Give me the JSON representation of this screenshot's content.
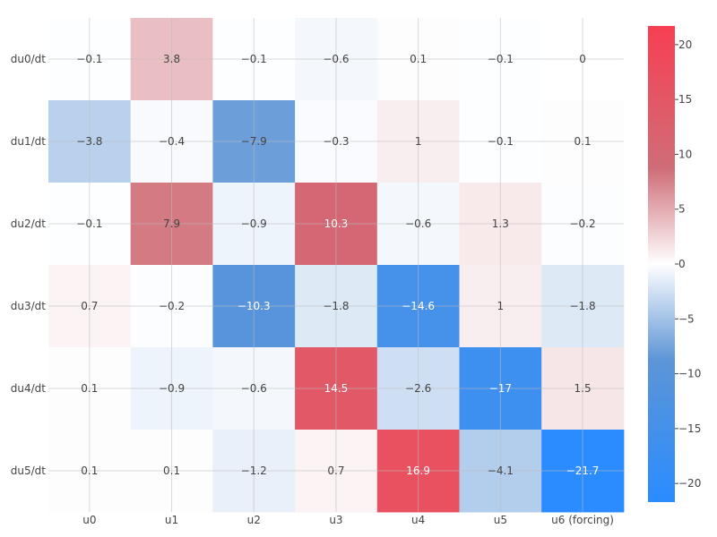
{
  "chart_data": {
    "type": "heatmap",
    "title": "",
    "xlabel": "",
    "ylabel": "",
    "x_categories": [
      "u0",
      "u1",
      "u2",
      "u3",
      "u4",
      "u5",
      "u6 (forcing)"
    ],
    "y_categories": [
      "du0/dt",
      "du1/dt",
      "du2/dt",
      "du3/dt",
      "du4/dt",
      "du5/dt"
    ],
    "values": [
      [
        -0.1,
        3.8,
        -0.1,
        -0.6,
        0.1,
        -0.1,
        0
      ],
      [
        -3.8,
        -0.4,
        -7.9,
        -0.3,
        1,
        -0.1,
        0.1
      ],
      [
        -0.1,
        7.9,
        -0.9,
        10.3,
        -0.6,
        1.3,
        -0.2
      ],
      [
        0.7,
        -0.2,
        -10.3,
        -1.8,
        -14.6,
        1,
        -1.8
      ],
      [
        0.1,
        -0.9,
        -0.6,
        14.5,
        -2.6,
        -17,
        1.5
      ],
      [
        0.1,
        0.1,
        -1.2,
        0.7,
        16.9,
        -4.1,
        -21.7
      ]
    ],
    "zlim": [
      -21.7,
      21.7
    ],
    "colorscale": {
      "negative": "#2a8cff",
      "mid_negative": "#5e95d6",
      "neutral": "#ffffff",
      "mid_positive": "#cf6d77",
      "positive": "#f83f53"
    },
    "colorbar_ticks": [
      20,
      15,
      10,
      5,
      0,
      -5,
      -10,
      -15,
      -20
    ],
    "grid": true,
    "colorbar_position": "right"
  }
}
